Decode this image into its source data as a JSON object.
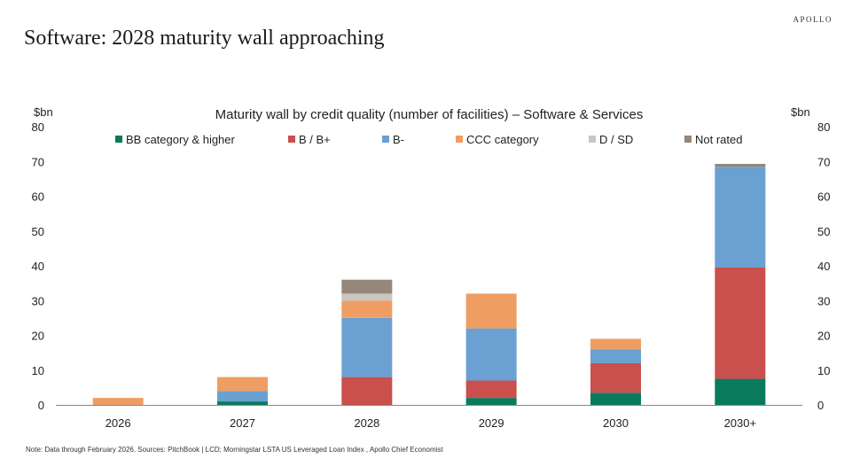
{
  "brand": "APOLLO",
  "page_title": "Software: 2028 maturity wall approaching",
  "footnote": "Note: Data through February 2026. Sources: PitchBook | LCD; Morningstar LSTA US Leveraged Loan Index , Apollo Chief Economist",
  "chart_data": {
    "type": "bar",
    "stacked": true,
    "title": "Maturity wall by credit quality (number of facilities) – Software & Services",
    "ylabel_left": "$bn",
    "ylabel_right": "$bn",
    "ylim": [
      0,
      80
    ],
    "yticks": [
      0,
      10,
      20,
      30,
      40,
      50,
      60,
      70,
      80
    ],
    "categories": [
      "2026",
      "2027",
      "2028",
      "2029",
      "2030",
      "2030+"
    ],
    "legend_position": "top",
    "series": [
      {
        "name": "BB category & higher",
        "color": "#0a7a5c",
        "values": [
          0,
          1,
          0,
          2,
          3.5,
          7.5
        ]
      },
      {
        "name": "B / B+",
        "color": "#c9504c",
        "values": [
          0,
          0,
          8,
          5,
          8.5,
          32
        ]
      },
      {
        "name": "B-",
        "color": "#6aa0d2",
        "values": [
          0,
          3,
          17,
          15,
          4,
          29
        ]
      },
      {
        "name": "CCC category",
        "color": "#ee9e62",
        "values": [
          2,
          4,
          5,
          10,
          3,
          0
        ]
      },
      {
        "name": "D / SD",
        "color": "#c9c5c1",
        "values": [
          0,
          0,
          2,
          0,
          0,
          0
        ]
      },
      {
        "name": "Not rated",
        "color": "#958779",
        "values": [
          0,
          0,
          4,
          0,
          0,
          0.8
        ]
      }
    ]
  }
}
